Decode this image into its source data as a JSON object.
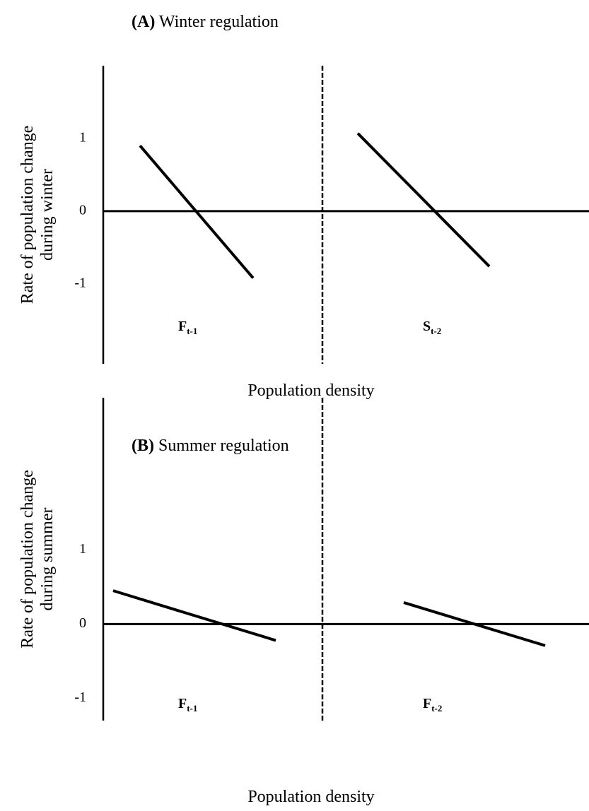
{
  "chart_data": [
    {
      "type": "line",
      "panel": "(A)",
      "title": "Winter regulation",
      "ylabel": [
        "Rate of population change",
        "during winter"
      ],
      "xlabel": "Population density",
      "ylim": [
        -2.1,
        2.0
      ],
      "yticks": [
        -1,
        0,
        1
      ],
      "series": [
        {
          "name": "F",
          "subscript": "t-1",
          "color": "#000000",
          "values": [
            0.9,
            -0.92
          ]
        },
        {
          "name": "S",
          "subscript": "t-2",
          "color": "#000000",
          "values": [
            1.07,
            -0.76
          ]
        }
      ]
    },
    {
      "type": "line",
      "panel": "(B)",
      "title": "Summer regulation",
      "ylabel": [
        "Rate of population change",
        "during summer"
      ],
      "xlabel": "Population density",
      "ylim": [
        -1.3,
        3.05
      ],
      "yticks": [
        -1,
        0,
        1
      ],
      "series": [
        {
          "name": "F",
          "subscript": "t-1",
          "color": "#000000",
          "values": [
            0.45,
            -0.22
          ]
        },
        {
          "name": "F",
          "subscript": "t-2",
          "color": "#000000",
          "values": [
            0.29,
            -0.29
          ]
        }
      ]
    }
  ]
}
